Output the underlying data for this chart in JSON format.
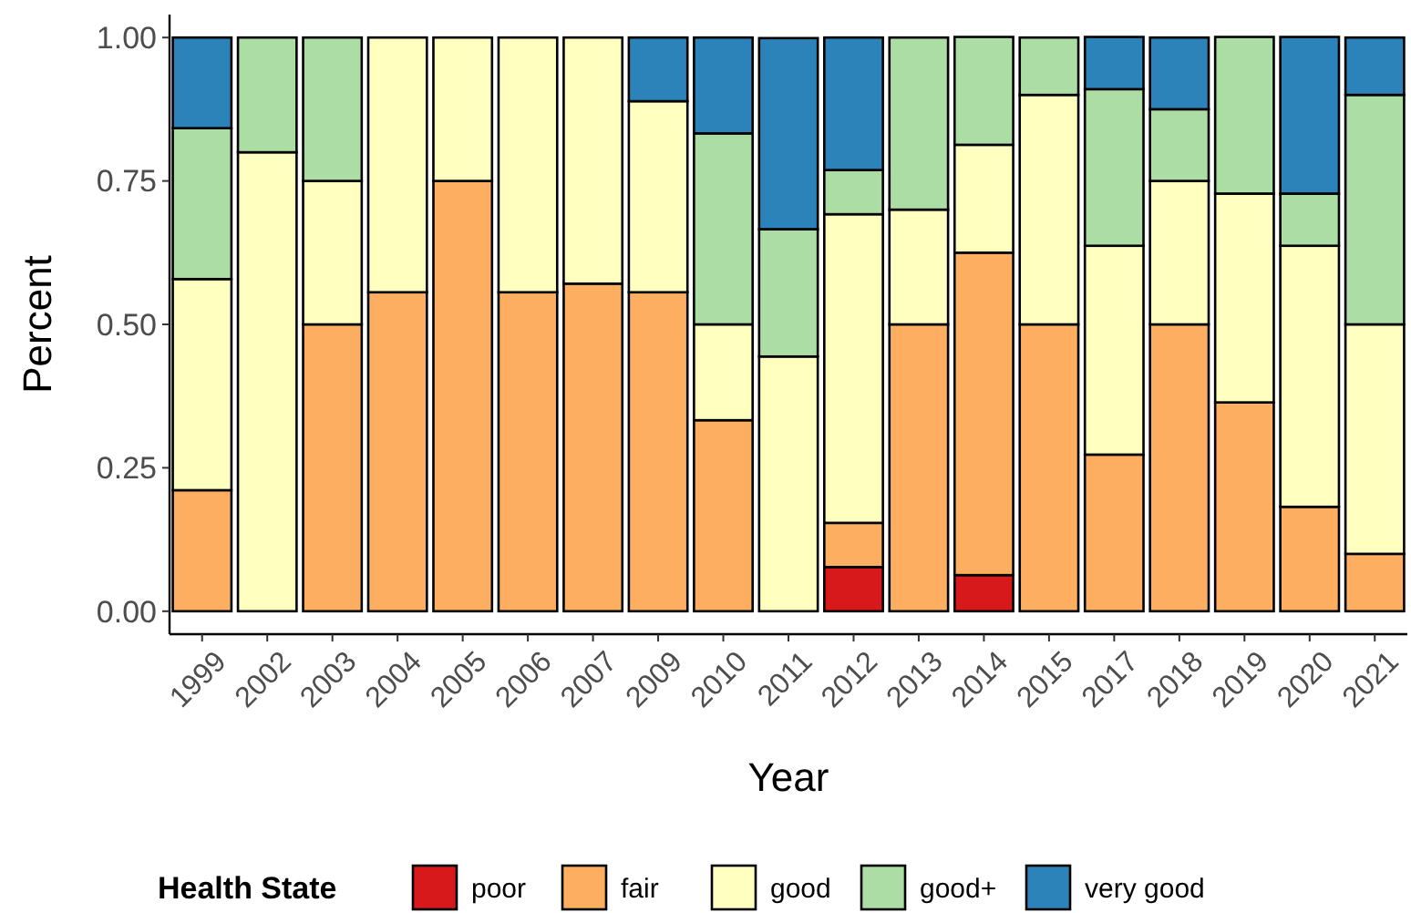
{
  "chart_data": {
    "type": "bar",
    "stacked": true,
    "xlabel": "Year",
    "ylabel": "Percent",
    "legend_title": "Health State",
    "legend": "bottom",
    "grid": false,
    "categories": [
      "1999",
      "2002",
      "2003",
      "2004",
      "2005",
      "2006",
      "2007",
      "2009",
      "2010",
      "2011",
      "2012",
      "2013",
      "2014",
      "2015",
      "2017",
      "2018",
      "2019",
      "2020",
      "2021"
    ],
    "ylim": [
      -0.04,
      1.04
    ],
    "yticks": [
      {
        "value": 0,
        "label": "0.00"
      },
      {
        "value": 0.25,
        "label": "0.25"
      },
      {
        "value": 0.5,
        "label": "0.50"
      },
      {
        "value": 0.75,
        "label": "0.75"
      },
      {
        "value": 1,
        "label": "1.00"
      }
    ],
    "series": [
      {
        "name": "poor",
        "color": "#d7191c",
        "values": [
          0,
          0,
          0,
          0,
          0,
          0,
          0,
          0,
          0,
          0,
          0.077,
          0,
          0.063,
          0,
          0,
          0,
          0,
          0,
          0
        ]
      },
      {
        "name": "fair",
        "color": "#fdae61",
        "values": [
          0.211,
          0,
          0.5,
          0.556,
          0.75,
          0.556,
          0.571,
          0.556,
          0.333,
          0,
          0.077,
          0.5,
          0.562,
          0.5,
          0.273,
          0.5,
          0.364,
          0.182,
          0.1
        ]
      },
      {
        "name": "good",
        "color": "#ffffbf",
        "values": [
          0.368,
          0.8,
          0.25,
          0.444,
          0.25,
          0.444,
          0.429,
          0.333,
          0.167,
          0.444,
          0.538,
          0.2,
          0.188,
          0.4,
          0.364,
          0.25,
          0.364,
          0.455,
          0.4
        ]
      },
      {
        "name": "good+",
        "color": "#abdda4",
        "values": [
          0.263,
          0.2,
          0.25,
          0,
          0,
          0,
          0,
          0,
          0.333,
          0.222,
          0.077,
          0.3,
          0.188,
          0.1,
          0.273,
          0.125,
          0.273,
          0.091,
          0.4
        ]
      },
      {
        "name": "very good",
        "color": "#2b83ba",
        "values": [
          0.158,
          0,
          0,
          0,
          0,
          0,
          0,
          0.111,
          0.167,
          0.333,
          0.231,
          0,
          0,
          0,
          0.091,
          0.125,
          0,
          0.273,
          0.1
        ]
      }
    ]
  }
}
